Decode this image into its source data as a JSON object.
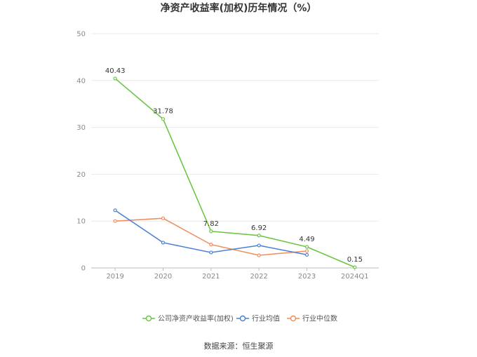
{
  "chart_data": {
    "type": "line",
    "title": "净资产收益率(加权)历年情况（%）",
    "categories": [
      "2019",
      "2020",
      "2021",
      "2022",
      "2023",
      "2024Q1"
    ],
    "ylim": [
      0,
      50
    ],
    "yticks": [
      0,
      10,
      20,
      30,
      40,
      50
    ],
    "grid": true,
    "legend_position": "bottom",
    "series": [
      {
        "name": "公司净资产收益率(加权)",
        "color": "#6cc644",
        "values": [
          40.43,
          31.78,
          7.82,
          6.92,
          4.49,
          0.15
        ],
        "labels": [
          "40.43",
          "31.78",
          "7.82",
          "6.92",
          "4.49",
          "0.15"
        ]
      },
      {
        "name": "行业均值",
        "color": "#4a7fd6",
        "values": [
          12.3,
          5.4,
          3.3,
          4.8,
          2.8,
          null
        ]
      },
      {
        "name": "行业中位数",
        "color": "#f08c5a",
        "values": [
          10.0,
          10.6,
          5.0,
          2.7,
          3.6,
          null
        ]
      }
    ],
    "source": "数据来源：恒生聚源"
  }
}
